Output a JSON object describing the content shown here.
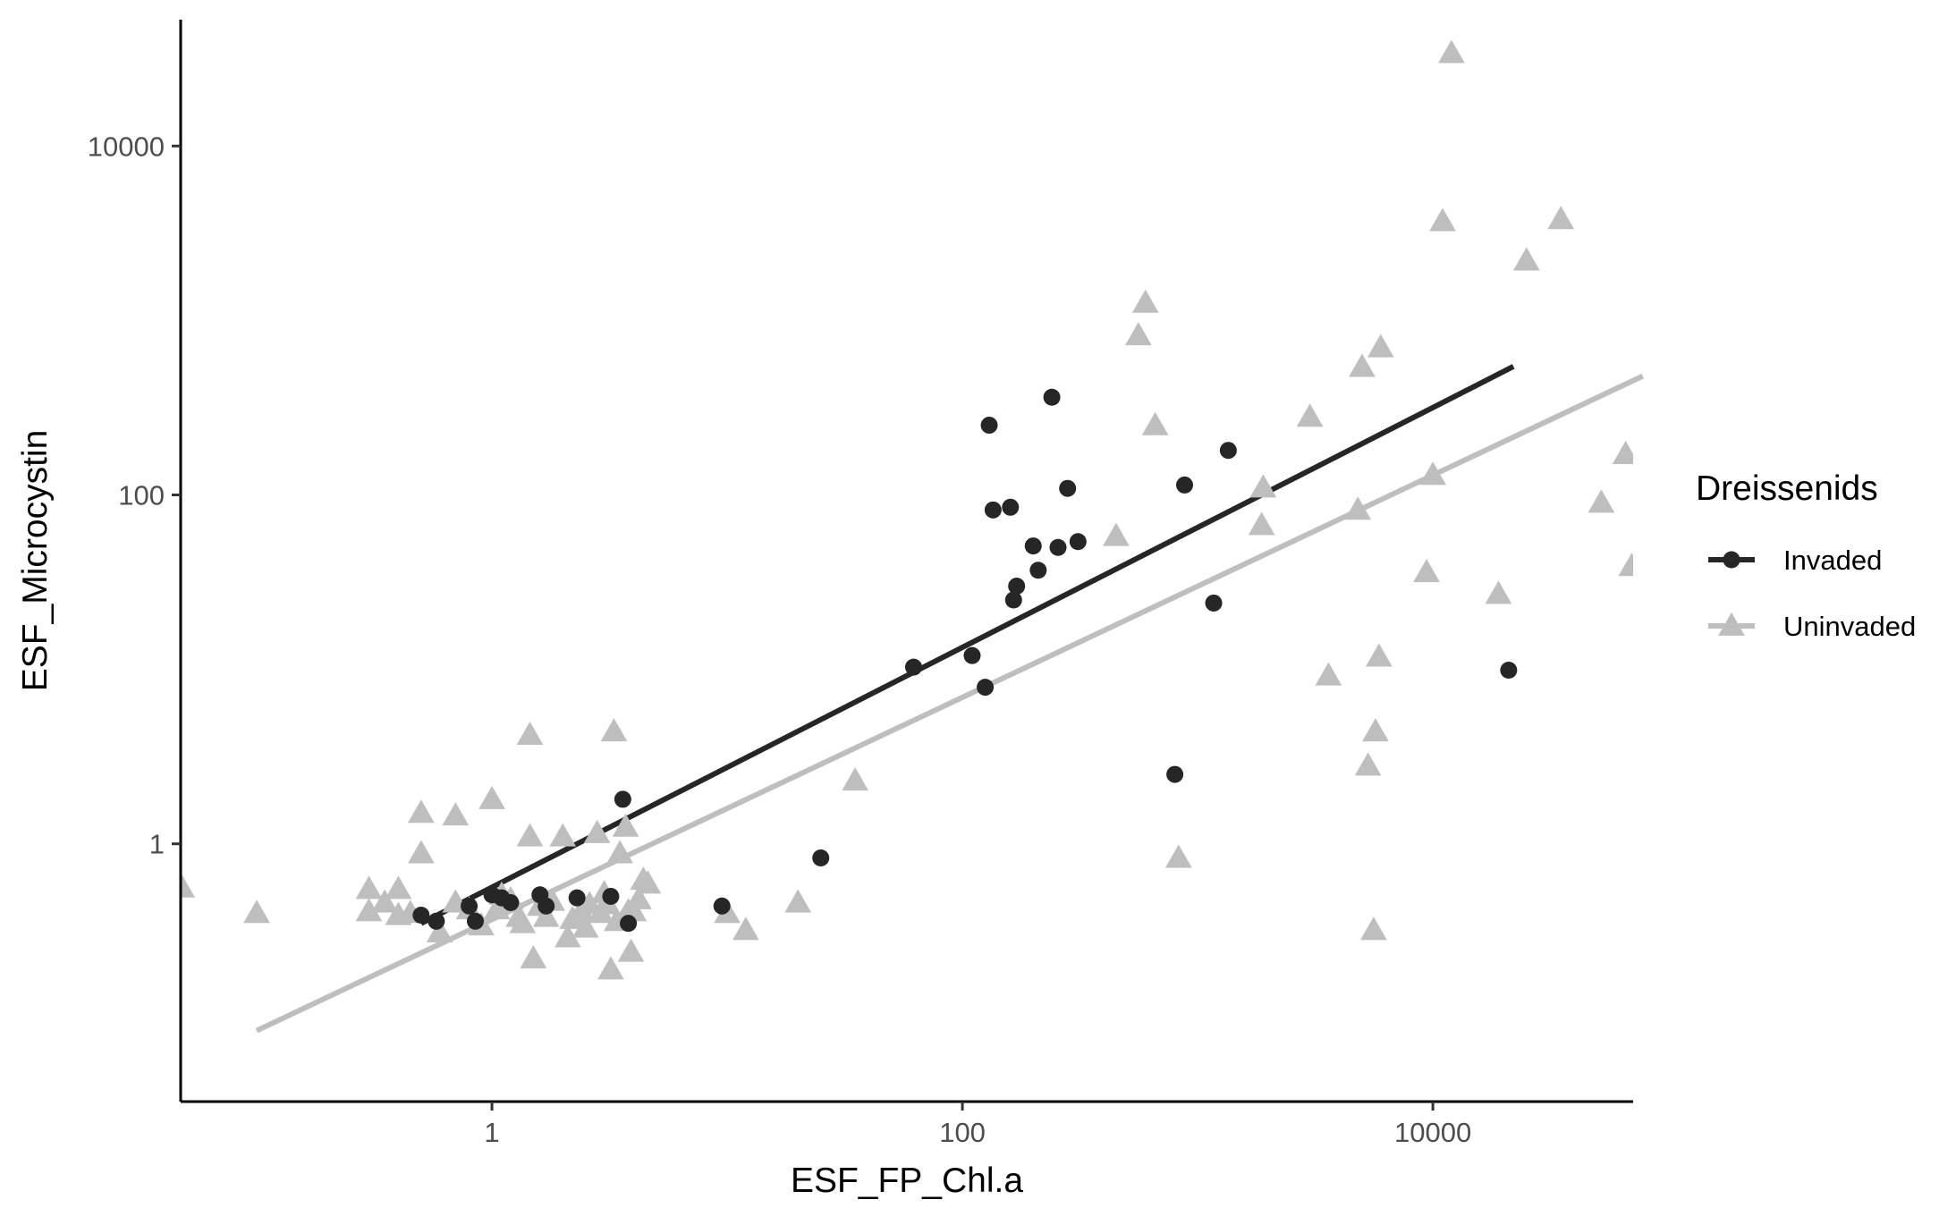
{
  "chart_data": {
    "type": "scatter",
    "xlabel": "ESF_FP_Chl.a",
    "ylabel": "ESF_Microcystin",
    "x_scale": "log10",
    "y_scale": "log10",
    "xlim": [
      0.0475,
      71000
    ],
    "ylim": [
      0.0333,
      53000
    ],
    "x_ticks": [
      1,
      100,
      10000
    ],
    "x_tick_labels": [
      "1",
      "100",
      "10000"
    ],
    "y_ticks": [
      1,
      100,
      10000
    ],
    "y_tick_labels": [
      "1",
      "100",
      "10000"
    ],
    "grid": false,
    "legend": {
      "title": "Dreissenids",
      "position": "right"
    },
    "series": [
      {
        "name": "Invaded",
        "marker": "circle",
        "color": "#262626",
        "fit": {
          "x": [
            0.5,
            22000
          ],
          "y": [
            0.35,
            545
          ]
        },
        "points": [
          [
            0.5,
            0.39
          ],
          [
            0.58,
            0.36
          ],
          [
            0.8,
            0.44
          ],
          [
            0.85,
            0.36
          ],
          [
            1.0,
            0.51
          ],
          [
            1.1,
            0.49
          ],
          [
            1.2,
            0.46
          ],
          [
            1.6,
            0.51
          ],
          [
            1.7,
            0.44
          ],
          [
            2.3,
            0.49
          ],
          [
            3.2,
            0.5
          ],
          [
            3.8,
            0.35
          ],
          [
            3.6,
            1.8
          ],
          [
            9.5,
            0.44
          ],
          [
            25,
            0.83
          ],
          [
            62,
            10.3
          ],
          [
            110,
            12
          ],
          [
            125,
            7.9
          ],
          [
            130,
            251
          ],
          [
            135,
            82
          ],
          [
            160,
            85
          ],
          [
            165,
            25
          ],
          [
            170,
            30
          ],
          [
            200,
            51
          ],
          [
            210,
            37
          ],
          [
            255,
            50
          ],
          [
            240,
            363
          ],
          [
            280,
            109
          ],
          [
            310,
            54
          ],
          [
            800,
            2.5
          ],
          [
            880,
            114
          ],
          [
            1170,
            24
          ],
          [
            1350,
            180
          ],
          [
            21000,
            9.9
          ]
        ]
      },
      {
        "name": "Uninvaded",
        "marker": "triangle",
        "color": "#bebebe",
        "fit": {
          "x": [
            0.1,
            78000
          ],
          "y": [
            0.085,
            480
          ]
        },
        "points": [
          [
            0.048,
            0.56
          ],
          [
            0.1,
            0.4
          ],
          [
            0.3,
            0.55
          ],
          [
            0.3,
            0.41
          ],
          [
            0.35,
            0.46
          ],
          [
            0.4,
            0.55
          ],
          [
            0.4,
            0.39
          ],
          [
            0.45,
            0.4
          ],
          [
            0.5,
            1.5
          ],
          [
            0.5,
            0.88
          ],
          [
            0.6,
            0.31
          ],
          [
            0.7,
            0.46
          ],
          [
            0.7,
            1.45
          ],
          [
            0.8,
            0.42
          ],
          [
            0.9,
            0.34
          ],
          [
            1.0,
            1.8
          ],
          [
            1.05,
            0.42
          ],
          [
            1.1,
            0.51
          ],
          [
            1.2,
            0.48
          ],
          [
            1.3,
            0.38
          ],
          [
            1.35,
            0.35
          ],
          [
            1.45,
            4.2
          ],
          [
            1.45,
            1.1
          ],
          [
            1.5,
            0.22
          ],
          [
            1.6,
            0.44
          ],
          [
            1.7,
            0.38
          ],
          [
            1.8,
            0.47
          ],
          [
            2.0,
            1.1
          ],
          [
            2.1,
            0.29
          ],
          [
            2.2,
            0.37
          ],
          [
            2.4,
            0.41
          ],
          [
            2.5,
            0.33
          ],
          [
            2.6,
            0.45
          ],
          [
            2.8,
            1.15
          ],
          [
            2.9,
            0.4
          ],
          [
            3.0,
            0.52
          ],
          [
            3.1,
            0.45
          ],
          [
            3.2,
            0.19
          ],
          [
            3.3,
            4.4
          ],
          [
            3.4,
            0.36
          ],
          [
            3.5,
            0.88
          ],
          [
            3.7,
            1.25
          ],
          [
            3.8,
            0.41
          ],
          [
            3.9,
            0.24
          ],
          [
            4.0,
            0.41
          ],
          [
            4.2,
            0.48
          ],
          [
            4.4,
            0.62
          ],
          [
            4.6,
            0.59
          ],
          [
            10,
            0.4
          ],
          [
            12,
            0.32
          ],
          [
            20,
            0.46
          ],
          [
            35,
            2.3
          ],
          [
            450,
            58
          ],
          [
            560,
            820
          ],
          [
            600,
            1260
          ],
          [
            660,
            250
          ],
          [
            830,
            0.83
          ],
          [
            1900,
            110
          ],
          [
            1870,
            67
          ],
          [
            3000,
            280
          ],
          [
            3600,
            9.2
          ],
          [
            4800,
            82
          ],
          [
            5000,
            540
          ],
          [
            5300,
            2.8
          ],
          [
            5600,
            0.32
          ],
          [
            5700,
            4.4
          ],
          [
            5900,
            11.8
          ],
          [
            6000,
            700
          ],
          [
            9400,
            36
          ],
          [
            10000,
            130
          ],
          [
            11000,
            3700
          ],
          [
            12000,
            34000
          ],
          [
            19000,
            27
          ],
          [
            25000,
            2200
          ],
          [
            35000,
            3800
          ],
          [
            52000,
            90
          ],
          [
            66000,
            171
          ],
          [
            70000,
            39
          ]
        ]
      }
    ]
  }
}
